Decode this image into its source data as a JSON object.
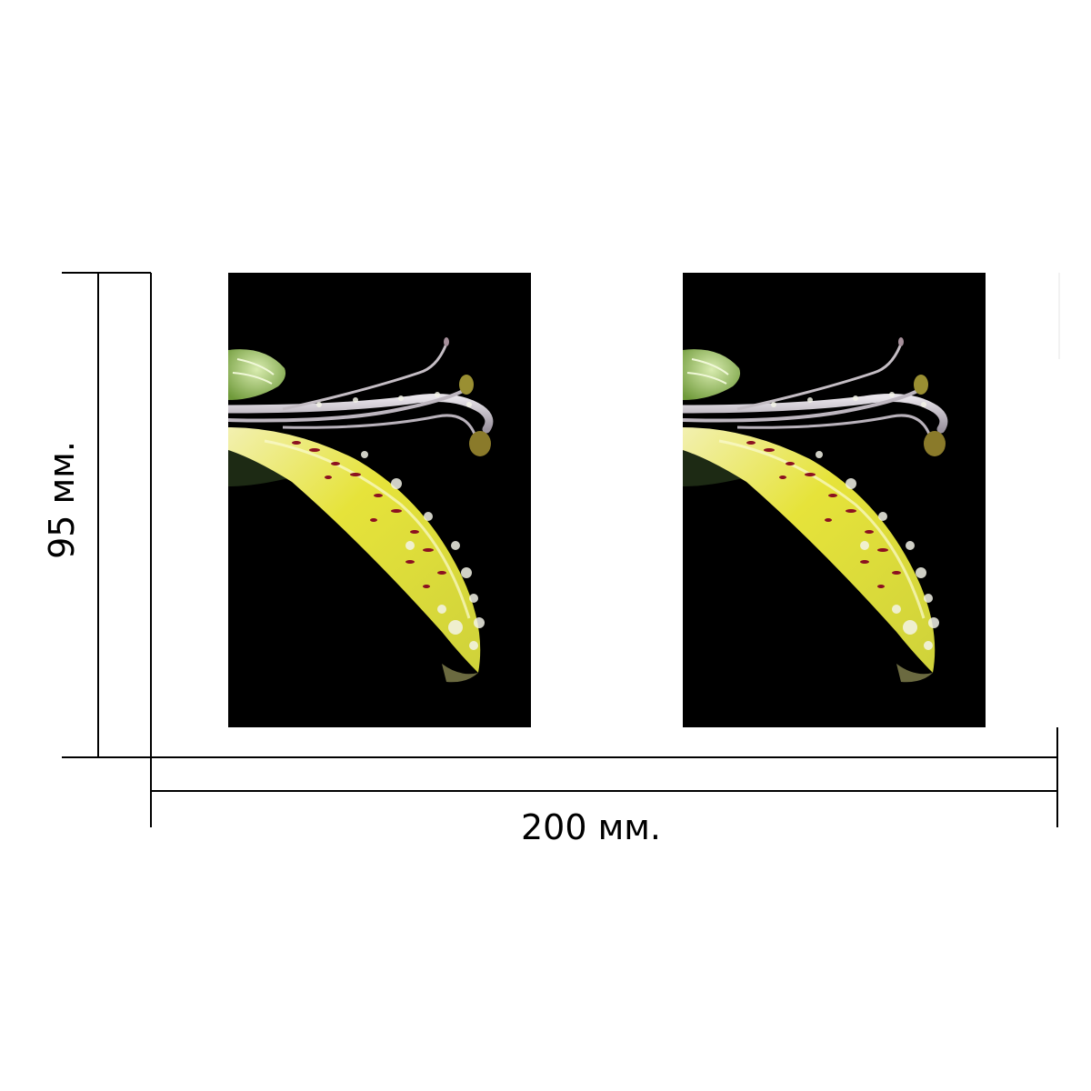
{
  "dimensions": {
    "width_label": "200 мм.",
    "height_label": "95 мм."
  },
  "product": {
    "panel_count": 2,
    "image_subject": "flower-petal-with-water-drops"
  },
  "colors": {
    "photo_background": "#000000",
    "petal_yellow": "#e8e63a",
    "petal_spots": "#8b1020",
    "stamen": "#c9c3c8",
    "bud_green": "#9cc25a",
    "dimension_lines": "#000000"
  }
}
